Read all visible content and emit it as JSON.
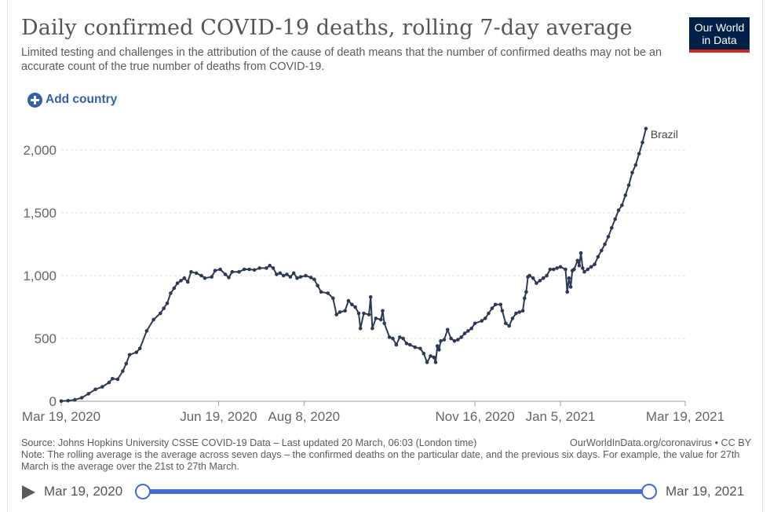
{
  "header": {
    "title": "Daily confirmed COVID-19 deaths, rolling 7-day average",
    "subtitle": "Limited testing and challenges in the attribution of the cause of death means that the number of confirmed deaths may not be an accurate count of the true number of deaths from COVID-19.",
    "logo_line1": "Our World",
    "logo_line2": "in Data",
    "add_country_label": "Add country"
  },
  "chart_data": {
    "type": "line",
    "title": "Daily confirmed COVID-19 deaths, rolling 7-day average",
    "xlabel": "",
    "ylabel": "",
    "ylim": [
      0,
      2200
    ],
    "grid": true,
    "y_ticks": [
      0,
      500,
      1000,
      1500,
      2000
    ],
    "y_tick_labels": [
      "0",
      "500",
      "1,000",
      "1,500",
      "2,000"
    ],
    "x_tick_labels": [
      "Mar 19, 2020",
      "Jun 19, 2020",
      "Aug 8, 2020",
      "Nov 16, 2020",
      "Jan 5, 2021",
      "Mar 19, 2021"
    ],
    "x_tick_days": [
      0,
      92,
      142,
      242,
      292,
      365
    ],
    "series": [
      {
        "name": "Brazil",
        "color": "#2e3a55",
        "points": [
          [
            0,
            1
          ],
          [
            4,
            5
          ],
          [
            8,
            12
          ],
          [
            12,
            28
          ],
          [
            16,
            60
          ],
          [
            20,
            95
          ],
          [
            24,
            115
          ],
          [
            28,
            150
          ],
          [
            30,
            180
          ],
          [
            33,
            175
          ],
          [
            36,
            240
          ],
          [
            38,
            300
          ],
          [
            40,
            370
          ],
          [
            44,
            390
          ],
          [
            46,
            420
          ],
          [
            50,
            560
          ],
          [
            54,
            650
          ],
          [
            58,
            700
          ],
          [
            60,
            740
          ],
          [
            62,
            780
          ],
          [
            64,
            860
          ],
          [
            66,
            900
          ],
          [
            68,
            940
          ],
          [
            70,
            960
          ],
          [
            72,
            980
          ],
          [
            74,
            950
          ],
          [
            76,
            1030
          ],
          [
            79,
            1020
          ],
          [
            82,
            1000
          ],
          [
            84,
            980
          ],
          [
            88,
            990
          ],
          [
            90,
            1040
          ],
          [
            93,
            1050
          ],
          [
            96,
            1010
          ],
          [
            98,
            985
          ],
          [
            100,
            1030
          ],
          [
            104,
            1030
          ],
          [
            107,
            1050
          ],
          [
            110,
            1050
          ],
          [
            113,
            1045
          ],
          [
            116,
            1060
          ],
          [
            120,
            1060
          ],
          [
            122,
            1080
          ],
          [
            124,
            1060
          ],
          [
            126,
            1010
          ],
          [
            128,
            1020
          ],
          [
            130,
            1000
          ],
          [
            132,
            1010
          ],
          [
            134,
            990
          ],
          [
            136,
            1020
          ],
          [
            138,
            980
          ],
          [
            140,
            990
          ],
          [
            143,
            1000
          ],
          [
            146,
            985
          ],
          [
            148,
            970
          ],
          [
            150,
            920
          ],
          [
            152,
            870
          ],
          [
            156,
            860
          ],
          [
            159,
            820
          ],
          [
            161,
            690
          ],
          [
            163,
            710
          ],
          [
            166,
            720
          ],
          [
            168,
            800
          ],
          [
            170,
            770
          ],
          [
            172,
            750
          ],
          [
            174,
            700
          ],
          [
            175,
            580
          ],
          [
            177,
            700
          ],
          [
            180,
            690
          ],
          [
            181,
            830
          ],
          [
            182,
            580
          ],
          [
            184,
            660
          ],
          [
            187,
            650
          ],
          [
            188,
            720
          ],
          [
            189,
            620
          ],
          [
            192,
            510
          ],
          [
            194,
            500
          ],
          [
            196,
            450
          ],
          [
            198,
            510
          ],
          [
            200,
            500
          ],
          [
            202,
            460
          ],
          [
            204,
            450
          ],
          [
            207,
            430
          ],
          [
            210,
            420
          ],
          [
            212,
            380
          ],
          [
            214,
            310
          ],
          [
            216,
            360
          ],
          [
            218,
            350
          ],
          [
            219,
            310
          ],
          [
            220,
            440
          ],
          [
            221,
            410
          ],
          [
            222,
            480
          ],
          [
            224,
            490
          ],
          [
            226,
            570
          ],
          [
            228,
            500
          ],
          [
            230,
            480
          ],
          [
            232,
            490
          ],
          [
            234,
            510
          ],
          [
            236,
            540
          ],
          [
            238,
            560
          ],
          [
            240,
            580
          ],
          [
            242,
            620
          ],
          [
            246,
            640
          ],
          [
            248,
            660
          ],
          [
            250,
            700
          ],
          [
            252,
            740
          ],
          [
            254,
            770
          ],
          [
            257,
            770
          ],
          [
            258,
            720
          ],
          [
            260,
            620
          ],
          [
            262,
            600
          ],
          [
            264,
            660
          ],
          [
            266,
            700
          ],
          [
            268,
            710
          ],
          [
            270,
            720
          ],
          [
            271,
            820
          ],
          [
            272,
            870
          ],
          [
            273,
            990
          ],
          [
            274,
            1000
          ],
          [
            276,
            980
          ],
          [
            278,
            940
          ],
          [
            280,
            960
          ],
          [
            282,
            980
          ],
          [
            284,
            1000
          ],
          [
            286,
            1050
          ],
          [
            288,
            1050
          ],
          [
            290,
            1060
          ],
          [
            292,
            1070
          ],
          [
            295,
            1050
          ],
          [
            296,
            870
          ],
          [
            297,
            980
          ],
          [
            298,
            910
          ],
          [
            299,
            1040
          ],
          [
            300,
            1050
          ],
          [
            302,
            1120
          ],
          [
            303,
            1080
          ],
          [
            304,
            1180
          ],
          [
            305,
            1060
          ],
          [
            306,
            1030
          ],
          [
            308,
            1050
          ],
          [
            310,
            1070
          ],
          [
            312,
            1090
          ],
          [
            314,
            1150
          ],
          [
            316,
            1200
          ],
          [
            318,
            1250
          ],
          [
            320,
            1310
          ],
          [
            322,
            1380
          ],
          [
            324,
            1450
          ],
          [
            326,
            1520
          ],
          [
            328,
            1560
          ],
          [
            330,
            1640
          ],
          [
            332,
            1720
          ],
          [
            334,
            1820
          ],
          [
            336,
            1880
          ],
          [
            338,
            1970
          ],
          [
            340,
            2060
          ],
          [
            342,
            2170
          ]
        ]
      }
    ],
    "series_label": "Brazil"
  },
  "footer": {
    "source": "Source: Johns Hopkins University CSSE COVID-19 Data – Last updated 20 March, 06:03 (London time)",
    "site": "OurWorldInData.org/coronavirus • CC BY",
    "note": "Note: The rolling average is the average across seven days – the confirmed deaths on the particular date, and the previous six days. For example, the value for 27th March is the average over the 21st to 27th March."
  },
  "timeline": {
    "start_label": "Mar 19, 2020",
    "end_label": "Mar 19, 2021"
  }
}
